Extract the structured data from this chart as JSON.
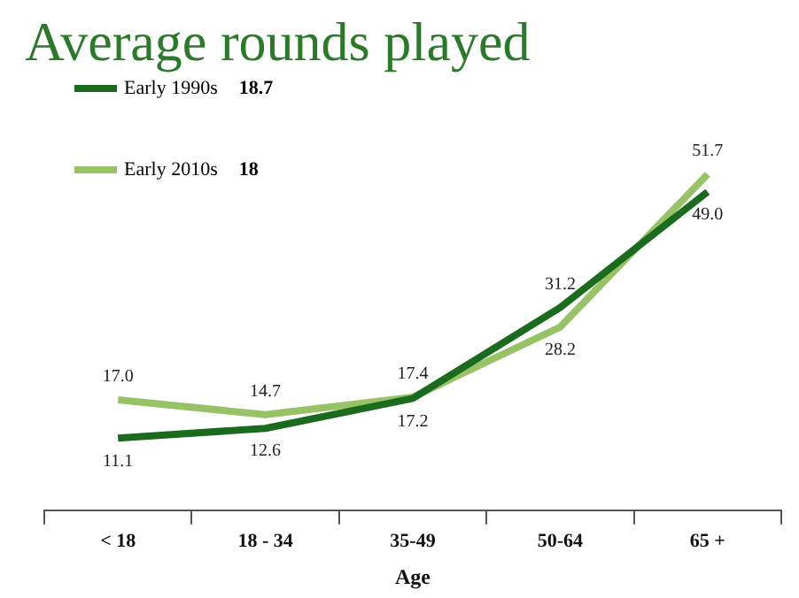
{
  "chart_data": {
    "type": "line",
    "title": "Average rounds played",
    "xlabel": "Age",
    "categories": [
      "< 18",
      "18 - 34",
      "35-49",
      "50-64",
      "65 +"
    ],
    "series": [
      {
        "name": "Early 1990s",
        "color": "#1b6b1f",
        "values": [
          11.1,
          12.6,
          17.2,
          31.2,
          49.0
        ],
        "value_labels": [
          "11.1",
          "12.6",
          "17.2",
          "31.2",
          "49.0"
        ]
      },
      {
        "name": "Early 2010s",
        "color": "#98c266",
        "values": [
          17.0,
          14.7,
          17.4,
          28.2,
          51.7
        ],
        "value_labels": [
          "17.0",
          "14.7",
          "17.4",
          "28.2",
          "51.7"
        ]
      }
    ],
    "annotations": [
      "18.7",
      "18"
    ],
    "legend": "top left",
    "grid": false,
    "tick_labels": "x",
    "marker": "none",
    "line_style": "solid"
  }
}
